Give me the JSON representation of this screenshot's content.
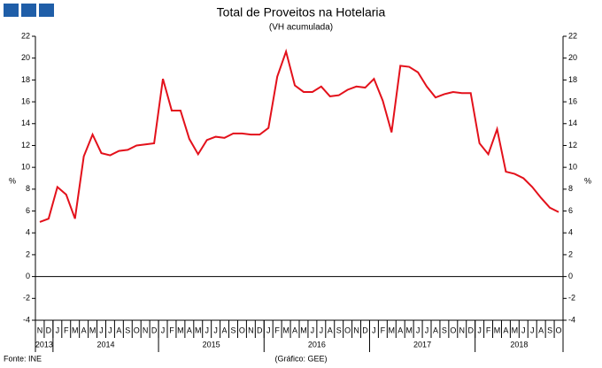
{
  "chart_data": {
    "type": "line",
    "title": "Total de Proveitos na Hotelaria",
    "subtitle": "(VH acumulada)",
    "y_label": "%",
    "source": "Fonte: INE",
    "credit": "(Gráfico: GEE)",
    "categories": [
      "N",
      "D",
      "J",
      "F",
      "M",
      "A",
      "M",
      "J",
      "J",
      "A",
      "S",
      "O",
      "N",
      "D",
      "J",
      "F",
      "M",
      "A",
      "M",
      "J",
      "J",
      "A",
      "S",
      "O",
      "N",
      "D",
      "J",
      "F",
      "M",
      "A",
      "M",
      "J",
      "J",
      "A",
      "S",
      "O",
      "N",
      "D",
      "J",
      "F",
      "M",
      "A",
      "M",
      "J",
      "J",
      "A",
      "S",
      "O",
      "N",
      "D",
      "J",
      "F",
      "M",
      "A",
      "M",
      "J",
      "J",
      "A",
      "S",
      "O"
    ],
    "years": [
      "2013",
      "2014",
      "2015",
      "2016",
      "2017",
      "2018"
    ],
    "series": [
      {
        "name": "Total de Proveitos",
        "color": "#e3111b",
        "values": [
          5.0,
          5.3,
          8.2,
          7.5,
          5.3,
          11.0,
          13.0,
          11.3,
          11.1,
          11.5,
          11.6,
          12.0,
          12.1,
          12.2,
          18.1,
          15.2,
          15.2,
          12.6,
          11.2,
          12.5,
          12.8,
          12.7,
          13.1,
          13.1,
          13.0,
          13.0,
          13.6,
          18.3,
          20.6,
          17.5,
          16.9,
          16.9,
          17.4,
          16.5,
          16.6,
          17.1,
          17.4,
          17.3,
          18.1,
          16.1,
          13.2,
          19.3,
          19.2,
          18.7,
          17.4,
          16.4,
          16.7,
          16.9,
          16.8,
          16.8,
          12.2,
          11.2,
          13.5,
          9.6,
          9.4,
          9.0,
          8.2,
          7.2,
          6.3,
          5.9
        ]
      }
    ],
    "ylim": [
      -4,
      22
    ],
    "yticks": [
      -4,
      -2,
      0,
      2,
      4,
      6,
      8,
      10,
      12,
      14,
      16,
      18,
      20,
      22
    ],
    "grid": false
  }
}
